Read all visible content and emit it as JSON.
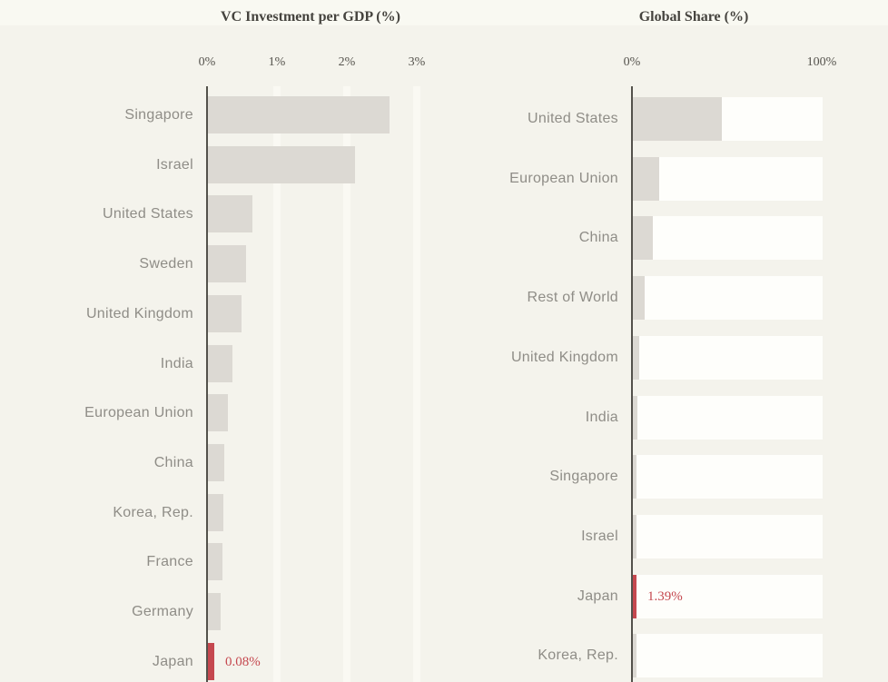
{
  "style": {
    "background": "#f4f3ec",
    "bar_color": "#dcd9d3",
    "track_color": "#fefefb",
    "axis_color": "#53514b",
    "category_label_color": "#8f8d87",
    "title_color": "#45433e",
    "highlight_color": "#c5484f"
  },
  "chart_data": [
    {
      "type": "bar",
      "orientation": "horizontal",
      "title": "VC Investment per GDP (%)",
      "xlabel": "",
      "ylabel": "",
      "xlim": [
        0,
        3
      ],
      "tick_labels": [
        "0%",
        "1%",
        "2%",
        "3%"
      ],
      "tick_values": [
        0,
        1,
        2,
        3
      ],
      "grid": "vertical-ticks",
      "legend": "none",
      "track_bars": false,
      "categories": [
        "Singapore",
        "Israel",
        "United States",
        "Sweden",
        "United Kingdom",
        "India",
        "European Union",
        "China",
        "Korea, Rep.",
        "France",
        "Germany",
        "Japan"
      ],
      "values": [
        2.6,
        2.1,
        0.64,
        0.55,
        0.48,
        0.35,
        0.28,
        0.23,
        0.22,
        0.21,
        0.18,
        0.08
      ],
      "highlight_category": "Japan",
      "highlight_value_label": "0.08%"
    },
    {
      "type": "bar",
      "orientation": "horizontal",
      "title": "Global Share (%)",
      "xlabel": "",
      "ylabel": "",
      "xlim": [
        0,
        100
      ],
      "tick_labels": [
        "0%",
        "100%"
      ],
      "tick_values": [
        0,
        100
      ],
      "grid": "none",
      "legend": "none",
      "track_bars": true,
      "categories": [
        "United States",
        "European Union",
        "China",
        "Rest of World",
        "United Kingdom",
        "India",
        "Singapore",
        "Israel",
        "Japan",
        "Korea, Rep."
      ],
      "values": [
        47,
        14,
        10.5,
        6,
        3.3,
        2.3,
        1.8,
        1.5,
        1.39,
        1.1
      ],
      "highlight_category": "Japan",
      "highlight_value_label": "1.39%"
    }
  ]
}
